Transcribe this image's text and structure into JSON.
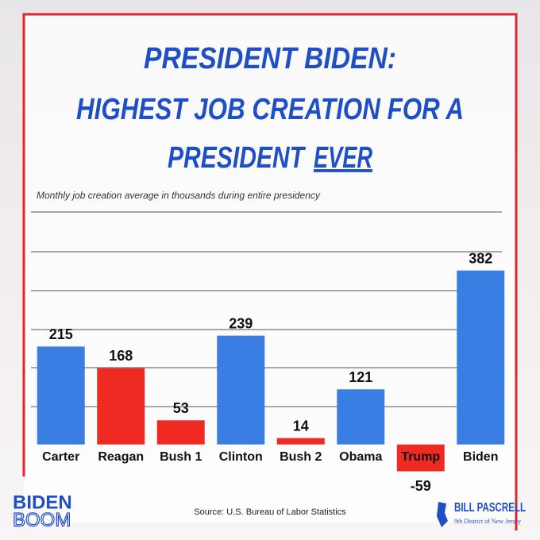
{
  "chart_data": {
    "type": "bar",
    "title": [
      "PRESIDENT BIDEN:",
      "HIGHEST JOB CREATION FOR A",
      "PRESIDENT",
      "EVER"
    ],
    "subtitle": "Monthly job creation average in thousands during entire presidency",
    "categories": [
      "Carter",
      "Reagan",
      "Bush 1",
      "Clinton",
      "Bush 2",
      "Obama",
      "Trump",
      "Biden"
    ],
    "values": [
      215,
      168,
      53,
      239,
      14,
      121,
      -59,
      382
    ],
    "colors": [
      "#3b7ee3",
      "#ee2a22",
      "#ee2a22",
      "#3b7ee3",
      "#ee2a22",
      "#3b7ee3",
      "#ee2a22",
      "#3b7ee3"
    ],
    "ylim": [
      -100,
      500
    ],
    "source": "Source: U.S. Bureau of Labor Statistics"
  },
  "branding": {
    "left": [
      "BIDEN",
      "BOOM"
    ],
    "right": [
      "BILL PASCRELL",
      "9th District of New Jersey"
    ]
  }
}
